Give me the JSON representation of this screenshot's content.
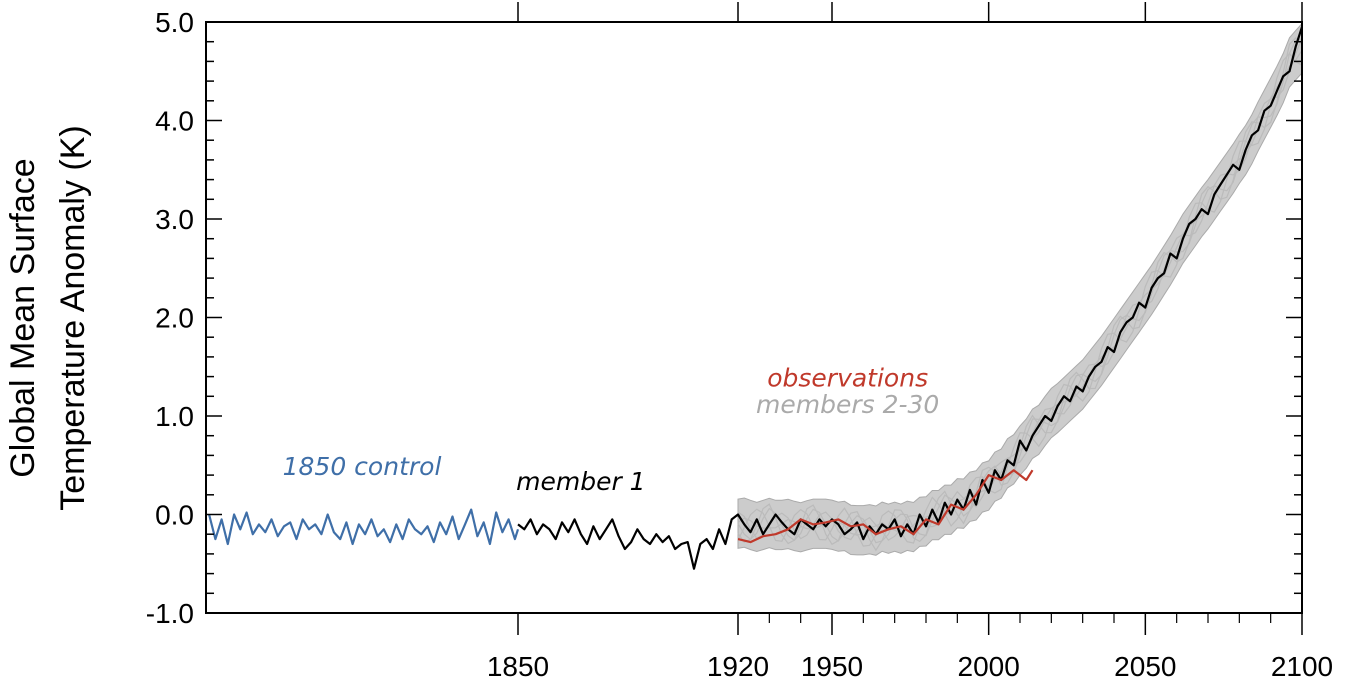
{
  "chart_data": {
    "type": "line",
    "ylabel_lines": [
      "Global Mean Surface",
      "Temperature Anomaly (K)"
    ],
    "ylim": [
      -1.0,
      5.0
    ],
    "yticks": [
      -1.0,
      0.0,
      1.0,
      2.0,
      3.0,
      4.0,
      5.0
    ],
    "ytick_labels": [
      "-1.0",
      "0.0",
      "1.0",
      "2.0",
      "3.0",
      "4.0",
      "5.0"
    ],
    "xticks": [
      1850,
      1920,
      1950,
      2000,
      2050,
      2100
    ],
    "xtick_labels": [
      "1850",
      "1920",
      "1950",
      "2000",
      "2050",
      "2100"
    ],
    "grid": false,
    "series": [
      {
        "name": "1850 control",
        "color": "#3f6fa8",
        "x": [
          1751,
          1753,
          1755,
          1757,
          1759,
          1761,
          1763,
          1765,
          1767,
          1769,
          1771,
          1773,
          1775,
          1777,
          1779,
          1781,
          1783,
          1785,
          1787,
          1789,
          1791,
          1793,
          1795,
          1797,
          1799,
          1801,
          1803,
          1805,
          1807,
          1809,
          1811,
          1813,
          1815,
          1817,
          1819,
          1821,
          1823,
          1825,
          1827,
          1829,
          1831,
          1833,
          1835,
          1837,
          1839,
          1841,
          1843,
          1845,
          1847,
          1849,
          1850
        ],
        "y": [
          0.0,
          -0.25,
          -0.05,
          -0.3,
          0.0,
          -0.15,
          0.02,
          -0.2,
          -0.1,
          -0.18,
          -0.05,
          -0.22,
          -0.12,
          -0.08,
          -0.25,
          -0.05,
          -0.15,
          -0.1,
          -0.2,
          0.0,
          -0.18,
          -0.25,
          -0.08,
          -0.3,
          -0.1,
          -0.2,
          -0.05,
          -0.22,
          -0.15,
          -0.28,
          -0.1,
          -0.25,
          -0.05,
          -0.15,
          -0.2,
          -0.12,
          -0.28,
          -0.08,
          -0.2,
          -0.02,
          -0.25,
          -0.1,
          0.05,
          -0.22,
          -0.08,
          -0.3,
          0.02,
          -0.18,
          -0.05,
          -0.25,
          -0.15
        ]
      },
      {
        "name": "member 1",
        "color": "#000000",
        "x": [
          1850,
          1852,
          1854,
          1856,
          1858,
          1860,
          1862,
          1864,
          1866,
          1868,
          1870,
          1872,
          1874,
          1876,
          1878,
          1880,
          1882,
          1884,
          1886,
          1888,
          1890,
          1892,
          1894,
          1896,
          1898,
          1900,
          1902,
          1904,
          1906,
          1908,
          1910,
          1912,
          1914,
          1916,
          1918,
          1920,
          1922,
          1924,
          1926,
          1928,
          1930,
          1932,
          1934,
          1936,
          1938,
          1940,
          1942,
          1944,
          1946,
          1948,
          1950,
          1952,
          1954,
          1956,
          1958,
          1960,
          1962,
          1964,
          1966,
          1968,
          1970,
          1972,
          1974,
          1976,
          1978,
          1980,
          1982,
          1984,
          1986,
          1988,
          1990,
          1992,
          1994,
          1996,
          1998,
          2000,
          2002,
          2004,
          2006,
          2008,
          2010,
          2012,
          2014,
          2016,
          2018,
          2020,
          2022,
          2024,
          2026,
          2028,
          2030,
          2032,
          2034,
          2036,
          2038,
          2040,
          2042,
          2044,
          2046,
          2048,
          2050,
          2052,
          2054,
          2056,
          2058,
          2060,
          2062,
          2064,
          2066,
          2068,
          2070,
          2072,
          2074,
          2076,
          2078,
          2080,
          2082,
          2084,
          2086,
          2088,
          2090,
          2092,
          2094,
          2096,
          2098,
          2100
        ],
        "y": [
          -0.1,
          -0.15,
          -0.05,
          -0.2,
          -0.1,
          -0.15,
          -0.25,
          -0.08,
          -0.18,
          -0.05,
          -0.2,
          -0.3,
          -0.12,
          -0.25,
          -0.15,
          -0.05,
          -0.22,
          -0.35,
          -0.28,
          -0.15,
          -0.25,
          -0.3,
          -0.2,
          -0.28,
          -0.22,
          -0.35,
          -0.3,
          -0.28,
          -0.55,
          -0.3,
          -0.25,
          -0.35,
          -0.15,
          -0.3,
          -0.05,
          0.0,
          -0.1,
          -0.18,
          -0.05,
          -0.2,
          -0.1,
          0.0,
          -0.08,
          -0.15,
          -0.2,
          -0.05,
          -0.1,
          -0.15,
          -0.05,
          -0.12,
          -0.05,
          -0.1,
          -0.2,
          -0.15,
          -0.08,
          -0.25,
          -0.12,
          -0.2,
          -0.1,
          -0.15,
          -0.05,
          -0.22,
          -0.1,
          -0.2,
          0.0,
          -0.12,
          0.05,
          -0.08,
          0.12,
          0.0,
          0.15,
          0.05,
          0.25,
          0.1,
          0.35,
          0.22,
          0.45,
          0.35,
          0.55,
          0.5,
          0.75,
          0.65,
          0.8,
          0.9,
          1.0,
          0.95,
          1.1,
          1.2,
          1.15,
          1.3,
          1.25,
          1.4,
          1.5,
          1.55,
          1.7,
          1.65,
          1.85,
          1.95,
          2.0,
          2.15,
          2.1,
          2.3,
          2.4,
          2.45,
          2.65,
          2.6,
          2.8,
          2.95,
          3.0,
          3.1,
          3.05,
          3.25,
          3.35,
          3.45,
          3.55,
          3.5,
          3.7,
          3.85,
          3.9,
          4.1,
          4.15,
          4.3,
          4.45,
          4.5,
          4.75,
          4.95
        ]
      },
      {
        "name": "observations",
        "color": "#c0392b",
        "x": [
          1920,
          1924,
          1928,
          1932,
          1936,
          1940,
          1944,
          1948,
          1952,
          1956,
          1960,
          1964,
          1968,
          1972,
          1976,
          1980,
          1984,
          1988,
          1992,
          1996,
          2000,
          2004,
          2008,
          2012,
          2014
        ],
        "y": [
          -0.25,
          -0.28,
          -0.22,
          -0.2,
          -0.15,
          -0.05,
          -0.1,
          -0.08,
          -0.05,
          -0.12,
          -0.1,
          -0.2,
          -0.15,
          -0.12,
          -0.2,
          -0.05,
          -0.1,
          0.1,
          0.05,
          0.2,
          0.4,
          0.35,
          0.45,
          0.35,
          0.45
        ]
      }
    ],
    "ensemble_band": {
      "name": "members 2-30",
      "color": "#aaaaaa",
      "x_start": 1920,
      "x_end": 2100,
      "spread": 0.25
    },
    "annotations": [
      {
        "text": "1850 control",
        "color": "#3f6fa8",
        "x": 1800,
        "y": 0.4
      },
      {
        "text": "member 1",
        "color": "#000000",
        "x": 1870,
        "y": 0.25
      },
      {
        "text": "observations",
        "color": "#c0392b",
        "x": 1955,
        "y": 1.3
      },
      {
        "text": "members 2-30",
        "color": "#aaaaaa",
        "x": 1955,
        "y": 1.03
      }
    ]
  }
}
